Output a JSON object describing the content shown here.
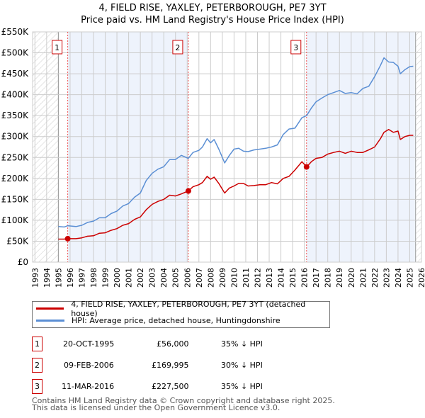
{
  "title": "4, FIELD RISE, YAXLEY, PETERBOROUGH, PE7 3YT",
  "subtitle": "Price paid vs. HM Land Registry's House Price Index (HPI)",
  "chart_data": {
    "type": "line",
    "xlim": [
      1993,
      2026
    ],
    "ylim": [
      0,
      550000
    ],
    "yticks": [
      0,
      50000,
      100000,
      150000,
      200000,
      250000,
      300000,
      350000,
      400000,
      450000,
      500000,
      550000
    ],
    "ytick_labels": [
      "£0",
      "£50K",
      "£100K",
      "£150K",
      "£200K",
      "£250K",
      "£300K",
      "£350K",
      "£400K",
      "£450K",
      "£500K",
      "£550K"
    ],
    "xticks": [
      "1993",
      "1994",
      "1995",
      "1996",
      "1997",
      "1998",
      "1999",
      "2000",
      "2001",
      "2002",
      "2003",
      "2004",
      "2005",
      "2006",
      "2007",
      "2008",
      "2009",
      "2010",
      "2011",
      "2012",
      "2013",
      "2014",
      "2015",
      "2016",
      "2017",
      "2018",
      "2019",
      "2020",
      "2021",
      "2022",
      "2023",
      "2024",
      "2025",
      "2026"
    ],
    "grid": true,
    "colors": {
      "price": "#cc0000",
      "hpi": "#5b8fd4",
      "shade": "#eef3fc"
    },
    "series": [
      {
        "name": "4, FIELD RISE, YAXLEY, PETERBOROUGH, PE7 3YT (detached house)",
        "x": [
          1995.0,
          1995.5,
          1995.8,
          1996.5,
          1997.0,
          1997.5,
          1998.0,
          1998.5,
          1999.0,
          1999.5,
          2000.0,
          2000.5,
          2001.0,
          2001.5,
          2002.0,
          2002.5,
          2003.0,
          2003.5,
          2004.0,
          2004.5,
          2005.0,
          2005.5,
          2006.1,
          2006.5,
          2007.0,
          2007.3,
          2007.7,
          2008.0,
          2008.3,
          2008.7,
          2009.2,
          2009.6,
          2010.0,
          2010.4,
          2010.8,
          2011.2,
          2011.7,
          2012.2,
          2012.7,
          2013.2,
          2013.7,
          2014.2,
          2014.7,
          2015.2,
          2015.8,
          2016.2,
          2016.6,
          2017.0,
          2017.5,
          2018.0,
          2018.5,
          2019.0,
          2019.5,
          2020.0,
          2020.5,
          2021.0,
          2021.5,
          2022.0,
          2022.5,
          2022.8,
          2023.2,
          2023.6,
          2024.0,
          2024.2,
          2024.6,
          2025.0,
          2025.3
        ],
        "values": [
          55000,
          55000,
          56000,
          56000,
          58000,
          62000,
          63000,
          69000,
          70000,
          76000,
          80000,
          88000,
          92000,
          102000,
          108000,
          125000,
          138000,
          145000,
          150000,
          160000,
          158000,
          163000,
          169995,
          180000,
          185000,
          190000,
          205000,
          198000,
          203000,
          188000,
          165000,
          177000,
          182000,
          188000,
          188000,
          182000,
          183000,
          185000,
          185000,
          190000,
          187000,
          200000,
          205000,
          220000,
          240000,
          227500,
          240000,
          248000,
          250000,
          258000,
          262000,
          265000,
          260000,
          265000,
          262000,
          262000,
          268000,
          275000,
          295000,
          310000,
          317000,
          310000,
          313000,
          293000,
          300000,
          303000,
          303000
        ]
      },
      {
        "name": "HPI: Average price, detached house, Huntingdonshire",
        "x": [
          1995.0,
          1995.5,
          1995.8,
          1996.5,
          1997.0,
          1997.5,
          1998.0,
          1998.5,
          1999.0,
          1999.5,
          2000.0,
          2000.5,
          2001.0,
          2001.5,
          2002.0,
          2002.5,
          2003.0,
          2003.5,
          2004.0,
          2004.5,
          2005.0,
          2005.5,
          2006.1,
          2006.5,
          2007.0,
          2007.3,
          2007.7,
          2008.0,
          2008.3,
          2008.7,
          2009.2,
          2009.6,
          2010.0,
          2010.4,
          2010.8,
          2011.2,
          2011.7,
          2012.2,
          2012.7,
          2013.2,
          2013.7,
          2014.2,
          2014.7,
          2015.2,
          2015.8,
          2016.2,
          2016.6,
          2017.0,
          2017.5,
          2018.0,
          2018.5,
          2019.0,
          2019.5,
          2020.0,
          2020.5,
          2021.0,
          2021.5,
          2022.0,
          2022.5,
          2022.8,
          2023.2,
          2023.6,
          2024.0,
          2024.2,
          2024.6,
          2025.0,
          2025.3
        ],
        "values": [
          85000,
          84000,
          87000,
          85000,
          88000,
          95000,
          98000,
          106000,
          106000,
          116000,
          122000,
          134000,
          140000,
          155000,
          165000,
          195000,
          212000,
          222000,
          228000,
          245000,
          245000,
          255000,
          248000,
          262000,
          267000,
          275000,
          295000,
          285000,
          293000,
          270000,
          237000,
          255000,
          270000,
          272000,
          265000,
          264000,
          268000,
          270000,
          272000,
          275000,
          280000,
          305000,
          318000,
          320000,
          345000,
          350000,
          368000,
          383000,
          392000,
          400000,
          405000,
          410000,
          403000,
          405000,
          402000,
          415000,
          420000,
          443000,
          470000,
          488000,
          478000,
          477000,
          468000,
          450000,
          460000,
          467000,
          468000
        ]
      }
    ],
    "sales": [
      {
        "label": "1",
        "x": 1995.8,
        "value": 56000
      },
      {
        "label": "2",
        "x": 2006.1,
        "value": 169995
      },
      {
        "label": "3",
        "x": 2016.19,
        "value": 227500
      }
    ]
  },
  "legend": {
    "price_label": "4, FIELD RISE, YAXLEY, PETERBOROUGH, PE7 3YT (detached house)",
    "hpi_label": "HPI: Average price, detached house, Huntingdonshire"
  },
  "table": [
    {
      "num": "1",
      "date": "20-OCT-1995",
      "price": "£56,000",
      "hpi": "35% ↓ HPI"
    },
    {
      "num": "2",
      "date": "09-FEB-2006",
      "price": "£169,995",
      "hpi": "30% ↓ HPI"
    },
    {
      "num": "3",
      "date": "11-MAR-2016",
      "price": "£227,500",
      "hpi": "35% ↓ HPI"
    }
  ],
  "footer": {
    "line1": "Contains HM Land Registry data © Crown copyright and database right 2025.",
    "line2": "This data is licensed under the Open Government Licence v3.0."
  }
}
